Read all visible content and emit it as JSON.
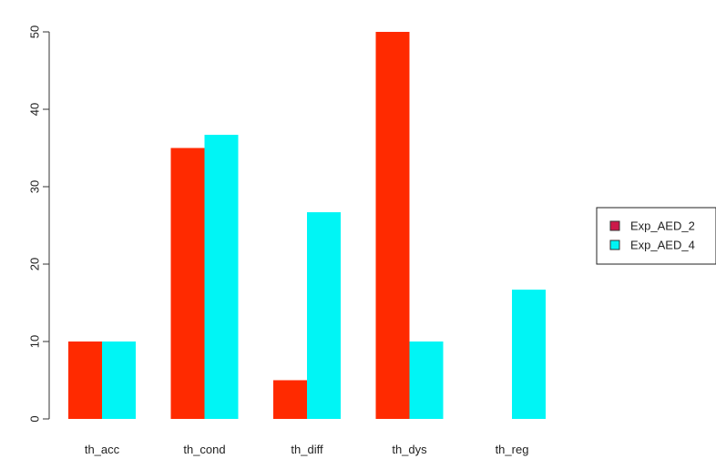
{
  "chart_data": {
    "type": "bar",
    "categories": [
      "th_acc",
      "th_cond",
      "th_diff",
      "th_dys",
      "th_reg"
    ],
    "series": [
      {
        "name": "Exp_AED_2",
        "values": [
          10,
          35,
          5,
          50,
          0
        ],
        "color": "#ff2a00"
      },
      {
        "name": "Exp_AED_4",
        "values": [
          10,
          36.7,
          26.7,
          10,
          16.7
        ],
        "color": "#00f5f5"
      }
    ],
    "legend_swatch_colors": [
      "#cc1a4a",
      "#00f5f5"
    ],
    "yticks": [
      0,
      10,
      20,
      30,
      40,
      50
    ],
    "ylim": [
      0,
      50
    ],
    "title": "",
    "xlabel": "",
    "ylabel": "",
    "grid": false,
    "legend_position": "right"
  }
}
